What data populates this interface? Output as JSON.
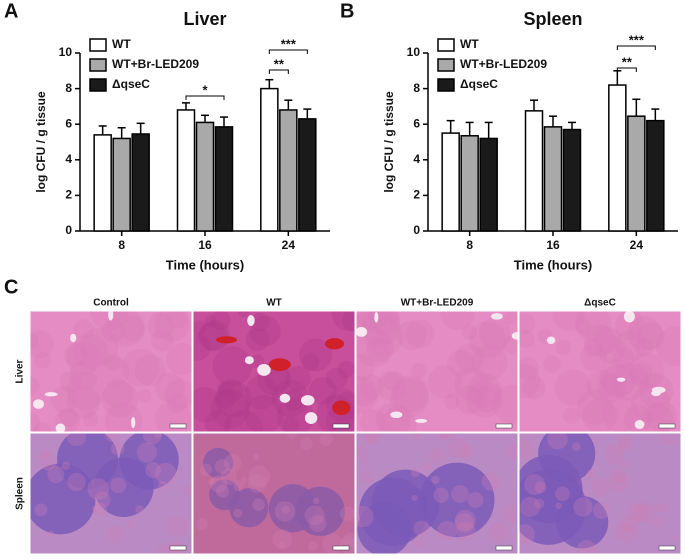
{
  "panels": [
    "A",
    "B",
    "C"
  ],
  "chart_data": [
    {
      "type": "bar",
      "title": "Liver",
      "x_label": "Time (hours)",
      "y_label": "log CFU / g tissue",
      "categories": [
        "8",
        "16",
        "24"
      ],
      "series": [
        {
          "name": "WT",
          "color": "#ffffff",
          "values": [
            5.4,
            6.8,
            8.0
          ],
          "errors": [
            0.5,
            0.4,
            0.5
          ]
        },
        {
          "name": "WT+Br-LED209",
          "color": "#a9a9a9",
          "values": [
            5.2,
            6.1,
            6.8
          ],
          "errors": [
            0.6,
            0.4,
            0.55
          ]
        },
        {
          "name": "ΔqseC",
          "color": "#1a1a1a",
          "values": [
            5.45,
            5.85,
            6.3
          ],
          "errors": [
            0.6,
            0.55,
            0.55
          ]
        }
      ],
      "ylim": [
        0,
        10
      ],
      "yticks": [
        0,
        2,
        4,
        6,
        8,
        10
      ],
      "annotations": [
        {
          "text": "*"
        },
        {
          "text": "**"
        },
        {
          "text": "***"
        }
      ]
    },
    {
      "type": "bar",
      "title": "Spleen",
      "x_label": "Time (hours)",
      "y_label": "log CFU / g tissue",
      "categories": [
        "8",
        "16",
        "24"
      ],
      "series": [
        {
          "name": "WT",
          "color": "#ffffff",
          "values": [
            5.5,
            6.75,
            8.2
          ],
          "errors": [
            0.7,
            0.6,
            0.8
          ]
        },
        {
          "name": "WT+Br-LED209",
          "color": "#a9a9a9",
          "values": [
            5.35,
            5.85,
            6.45
          ],
          "errors": [
            0.75,
            0.6,
            0.95
          ]
        },
        {
          "name": "ΔqseC",
          "color": "#1a1a1a",
          "values": [
            5.2,
            5.7,
            6.2
          ],
          "errors": [
            0.9,
            0.4,
            0.65
          ]
        }
      ],
      "ylim": [
        0,
        10
      ],
      "yticks": [
        0,
        2,
        4,
        6,
        8,
        10
      ],
      "annotations": [
        {
          "text": "**"
        },
        {
          "text": "***"
        }
      ]
    }
  ],
  "histology": {
    "columns": [
      "Control",
      "WT",
      "WT+Br-LED209",
      "ΔqseC"
    ],
    "rows": [
      "Liver",
      "Spleen"
    ]
  }
}
